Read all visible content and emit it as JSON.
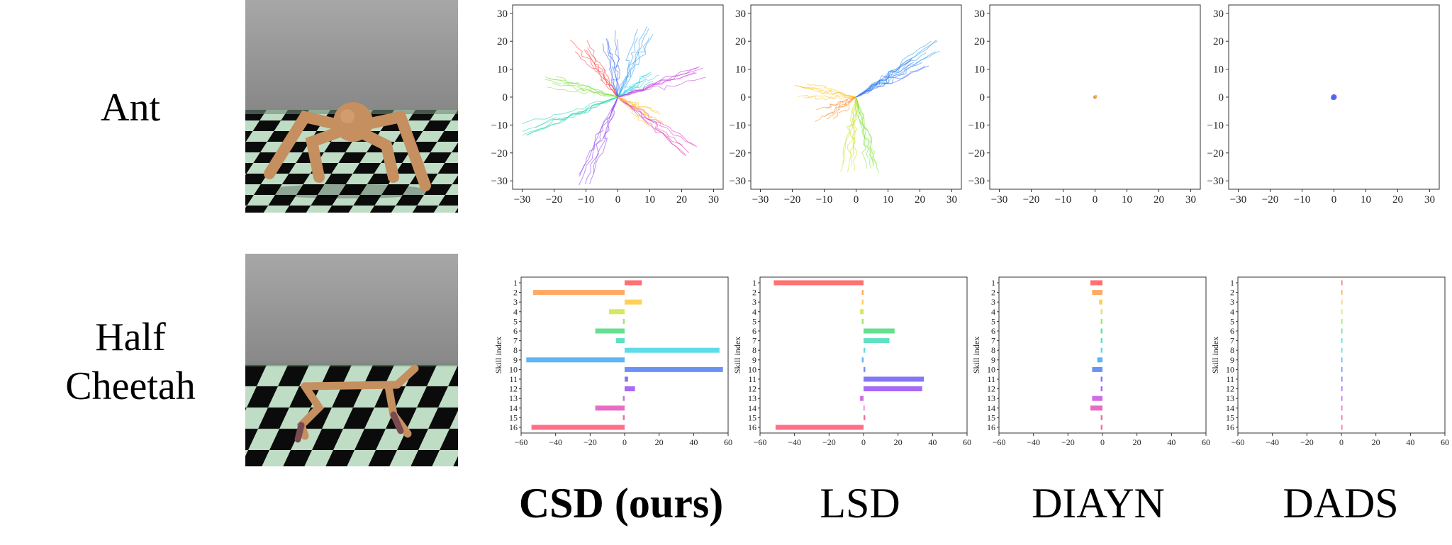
{
  "row_labels": {
    "ant": "Ant",
    "cheetah_line1": "Half",
    "cheetah_line2": "Cheetah"
  },
  "methods": [
    {
      "name": "CSD (ours)",
      "bold": true
    },
    {
      "name": "LSD",
      "bold": false
    },
    {
      "name": "DIAYN",
      "bold": false
    },
    {
      "name": "DADS",
      "bold": false
    }
  ],
  "colors": {
    "sky_top": "#a3a3a3",
    "sky_bottom": "#6f6f6f",
    "floor_light": "#bfdcc5",
    "floor_dark": "#0b0b0b",
    "robot": "#c58f5f",
    "skill_palette": [
      "#ff4040",
      "#ff8c2e",
      "#ffc21f",
      "#c8e02a",
      "#7be23a",
      "#31d46b",
      "#2ad6b0",
      "#2ad0e0",
      "#2a9cf0",
      "#3a6cf0",
      "#5a4af0",
      "#8a3af0",
      "#c23ae0",
      "#e03ab0",
      "#f03a7c",
      "#ff4060"
    ]
  },
  "chart_data": [
    {
      "type": "line",
      "row": "Ant",
      "method": "CSD (ours)",
      "title": "",
      "xlabel": "",
      "ylabel": "",
      "xlim": [
        -33,
        33
      ],
      "ylim": [
        -33,
        33
      ],
      "xticks": [
        -30,
        -20,
        -10,
        0,
        10,
        20,
        30
      ],
      "yticks": [
        30,
        20,
        10,
        0,
        -10,
        -20,
        -30
      ],
      "description": "x-y trajectories of 16 skills",
      "skill_endpoints": [
        {
          "skill": 1,
          "x": -12,
          "y": 18,
          "color": "#ff4040"
        },
        {
          "skill": 2,
          "x": 8,
          "y": 23,
          "color": "#2a9cf0"
        },
        {
          "skill": 3,
          "x": -3,
          "y": 22,
          "color": "#3a6cf0"
        },
        {
          "skill": 4,
          "x": 10,
          "y": 8,
          "color": "#2ad0e0"
        },
        {
          "skill": 5,
          "x": 25,
          "y": 10,
          "color": "#c23ae0"
        },
        {
          "skill": 6,
          "x": -22,
          "y": 6,
          "color": "#7be23a"
        },
        {
          "skill": 7,
          "x": -28,
          "y": -12,
          "color": "#2ad6b0"
        },
        {
          "skill": 8,
          "x": -10,
          "y": -30,
          "color": "#8a3af0"
        },
        {
          "skill": 9,
          "x": 22,
          "y": -20,
          "color": "#e03ab0"
        },
        {
          "skill": 10,
          "x": 12,
          "y": -8,
          "color": "#ffc21f"
        }
      ]
    },
    {
      "type": "line",
      "row": "Ant",
      "method": "LSD",
      "xlim": [
        -33,
        33
      ],
      "ylim": [
        -33,
        33
      ],
      "xticks": [
        -30,
        -20,
        -10,
        0,
        10,
        20,
        30
      ],
      "yticks": [
        30,
        20,
        10,
        0,
        -10,
        -20,
        -30
      ],
      "skill_endpoints": [
        {
          "skill": 1,
          "x": 24,
          "y": 18,
          "color": "#2a9cf0"
        },
        {
          "skill": 2,
          "x": 20,
          "y": 12,
          "color": "#3a6cf0"
        },
        {
          "skill": 3,
          "x": -18,
          "y": 2,
          "color": "#ffc21f"
        },
        {
          "skill": 4,
          "x": -10,
          "y": -6,
          "color": "#ff8c2e"
        },
        {
          "skill": 5,
          "x": 6,
          "y": -26,
          "color": "#7be23a"
        },
        {
          "skill": 6,
          "x": -2,
          "y": -24,
          "color": "#c8e02a"
        }
      ]
    },
    {
      "type": "scatter",
      "row": "Ant",
      "method": "DIAYN",
      "xlim": [
        -33,
        33
      ],
      "ylim": [
        -33,
        33
      ],
      "xticks": [
        -30,
        -20,
        -10,
        0,
        10,
        20,
        30
      ],
      "yticks": [
        30,
        20,
        10,
        0,
        -10,
        -20,
        -30
      ],
      "points": [
        {
          "x": 0,
          "y": 0
        }
      ]
    },
    {
      "type": "scatter",
      "row": "Ant",
      "method": "DADS",
      "xlim": [
        -33,
        33
      ],
      "ylim": [
        -33,
        33
      ],
      "xticks": [
        -30,
        -20,
        -10,
        0,
        10,
        20,
        30
      ],
      "yticks": [
        30,
        20,
        10,
        0,
        -10,
        -20,
        -30
      ],
      "points": [
        {
          "x": 0,
          "y": 0
        }
      ]
    },
    {
      "type": "bar",
      "orientation": "horizontal",
      "row": "Half Cheetah",
      "method": "CSD (ours)",
      "ylabel": "Skill index",
      "xlim": [
        -60,
        60
      ],
      "xticks": [
        -60,
        -40,
        -20,
        0,
        20,
        40,
        60
      ],
      "categories": [
        1,
        2,
        3,
        4,
        5,
        6,
        7,
        8,
        9,
        10,
        11,
        12,
        13,
        14,
        15,
        16
      ],
      "values": [
        10,
        -53,
        10,
        -9,
        -1,
        -17,
        -5,
        55,
        -57,
        57,
        2,
        6,
        -1,
        -17,
        -1,
        -54
      ]
    },
    {
      "type": "bar",
      "orientation": "horizontal",
      "row": "Half Cheetah",
      "method": "LSD",
      "ylabel": "Skill index",
      "xlim": [
        -60,
        60
      ],
      "xticks": [
        -60,
        -40,
        -20,
        0,
        20,
        40,
        60
      ],
      "categories": [
        1,
        2,
        3,
        4,
        5,
        6,
        7,
        8,
        9,
        10,
        11,
        12,
        13,
        14,
        15,
        16
      ],
      "values": [
        -52,
        -1,
        -1,
        -2,
        -1,
        18,
        15,
        1,
        -1,
        1,
        35,
        34,
        -2,
        0,
        1,
        -51
      ]
    },
    {
      "type": "bar",
      "orientation": "horizontal",
      "row": "Half Cheetah",
      "method": "DIAYN",
      "ylabel": "Skill index",
      "xlim": [
        -60,
        60
      ],
      "xticks": [
        -60,
        -40,
        -20,
        0,
        20,
        40,
        60
      ],
      "categories": [
        1,
        2,
        3,
        4,
        5,
        6,
        7,
        8,
        9,
        10,
        11,
        12,
        13,
        14,
        15,
        16
      ],
      "values": [
        -7,
        -6,
        -2,
        -1,
        -1,
        -1,
        -1,
        -1,
        -3,
        -6,
        -1,
        -1,
        -6,
        -7,
        -1,
        -1
      ]
    },
    {
      "type": "bar",
      "orientation": "horizontal",
      "row": "Half Cheetah",
      "method": "DADS",
      "ylabel": "Skill index",
      "xlim": [
        -60,
        60
      ],
      "xticks": [
        -60,
        -40,
        -20,
        0,
        20,
        40,
        60
      ],
      "categories": [
        1,
        2,
        3,
        4,
        5,
        6,
        7,
        8,
        9,
        10,
        11,
        12,
        13,
        14,
        15,
        16
      ],
      "values": [
        0.3,
        0.3,
        0.3,
        0.3,
        0.3,
        0.3,
        0.3,
        0.3,
        0.3,
        0.3,
        0.3,
        0.3,
        0.3,
        0.3,
        0.3,
        0.3
      ]
    }
  ]
}
